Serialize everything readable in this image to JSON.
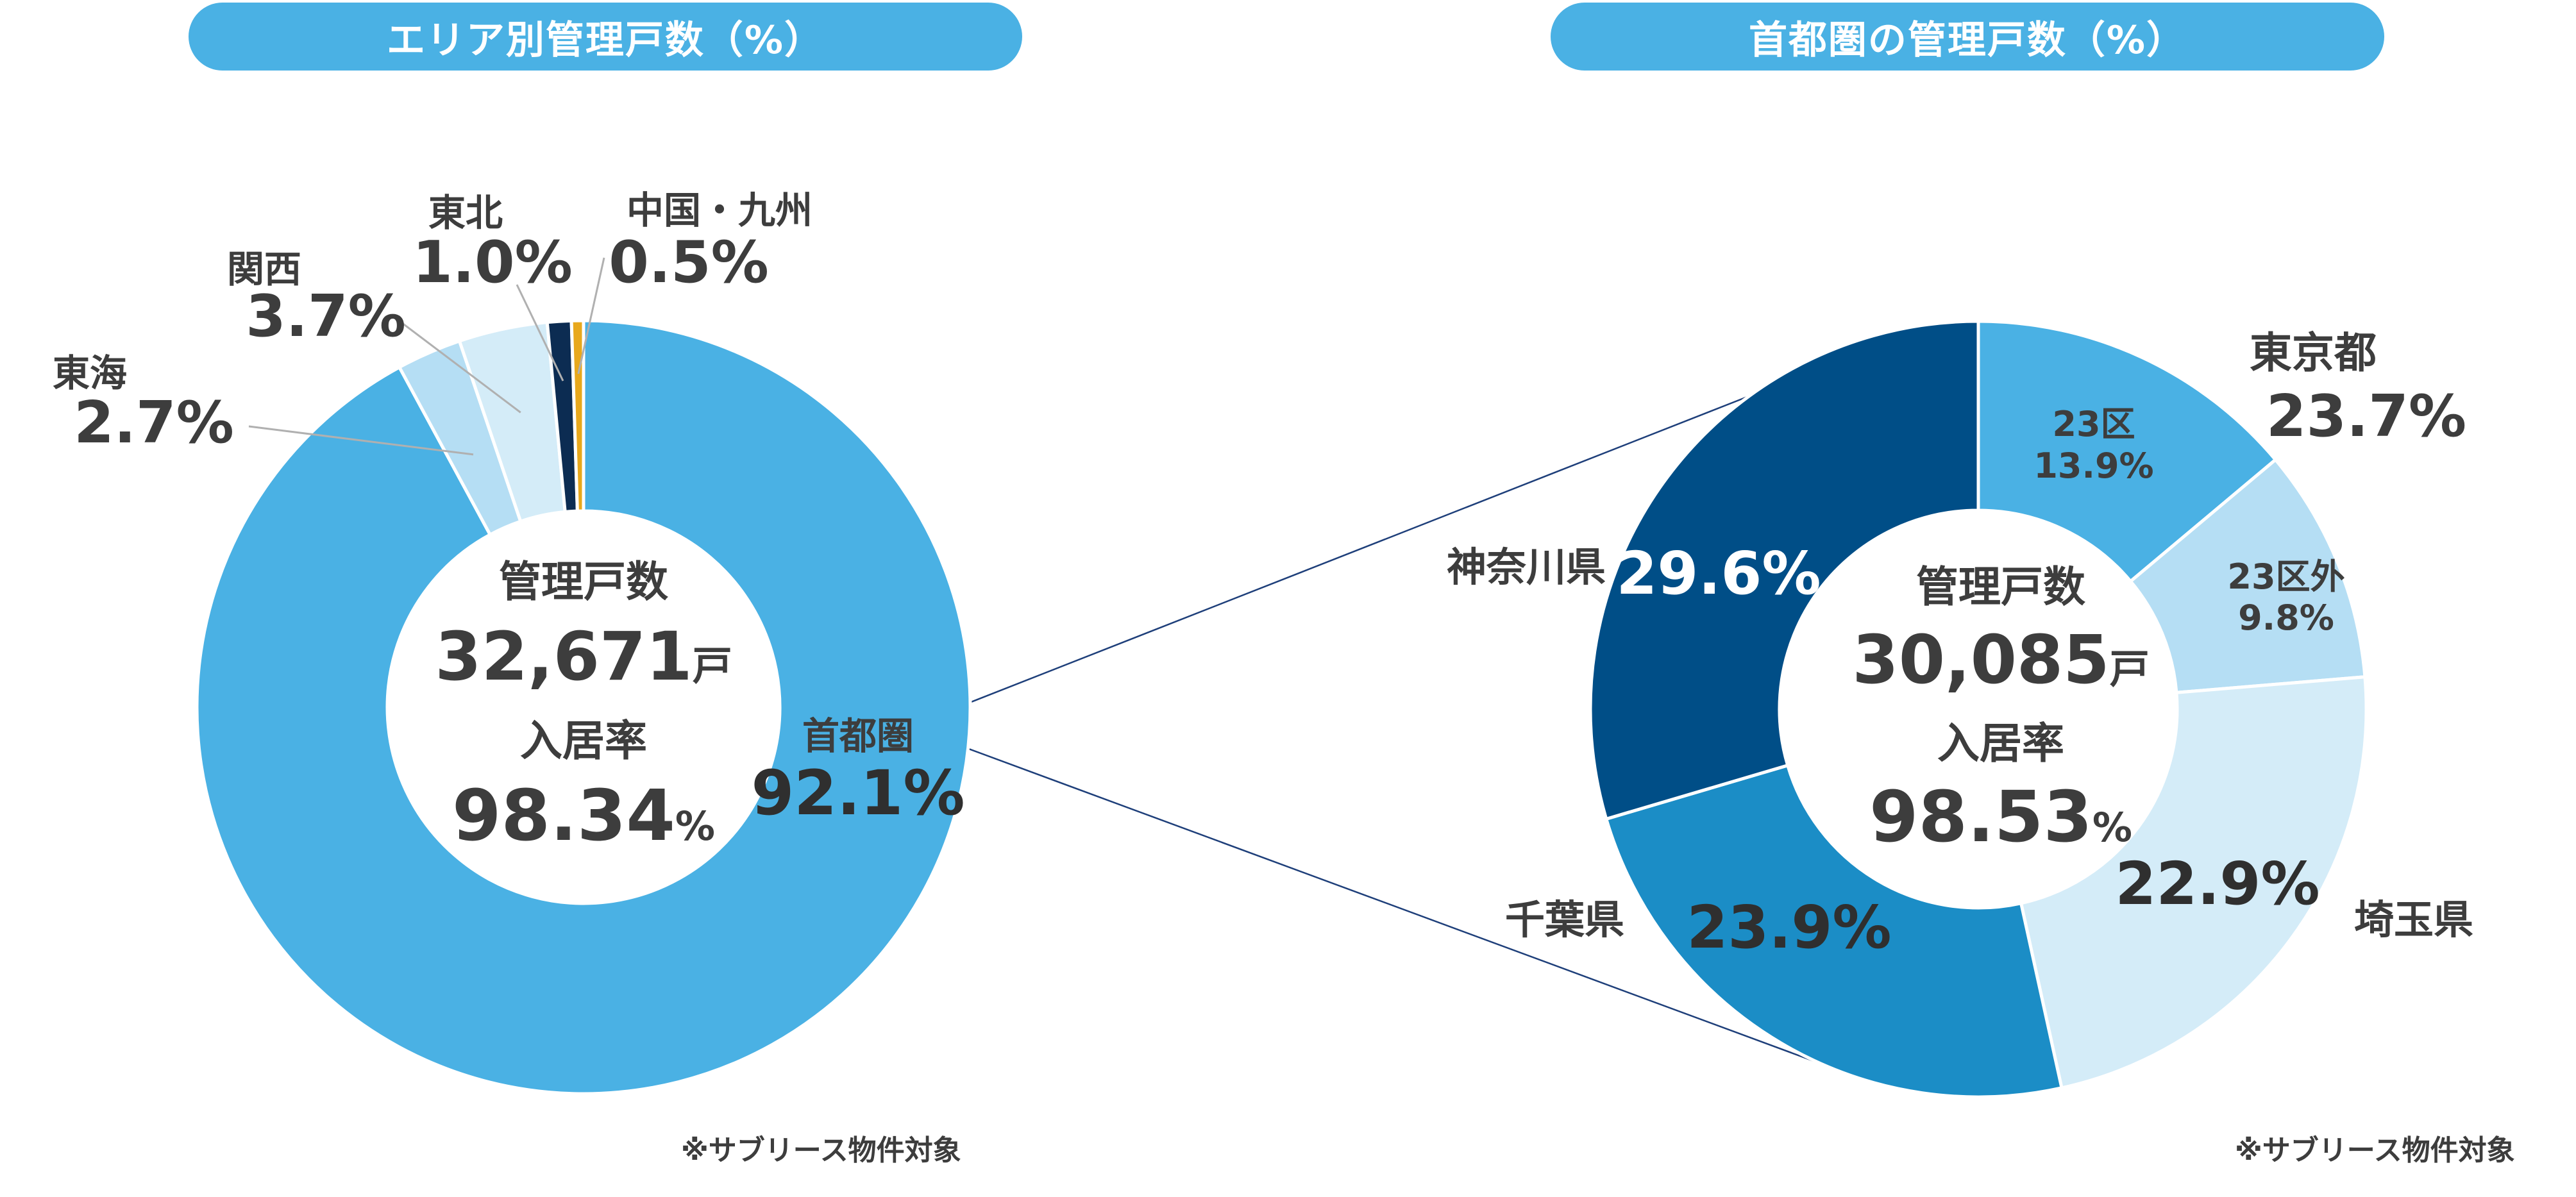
{
  "note": "※サブリース物件対象",
  "chart_data": [
    {
      "type": "pie",
      "title": "エリア別管理戸数（%）",
      "categories": [
        "首都圏",
        "東海",
        "関西",
        "東北",
        "中国・九州"
      ],
      "values": [
        92.1,
        2.7,
        3.7,
        1.0,
        0.5
      ],
      "value_labels": [
        "92.1%",
        "2.7%",
        "3.7%",
        "1.0%",
        "0.5%"
      ],
      "colors": [
        "#4ab1e4",
        "#b5def4",
        "#d4ecf8",
        "#0c2c52",
        "#e8a81c"
      ],
      "center": {
        "label1": "管理戸数",
        "count": "32,671",
        "count_unit": "戸",
        "label2": "入居率",
        "rate": "98.34",
        "rate_unit": "%"
      }
    },
    {
      "type": "pie",
      "title": "首都圏の管理戸数（%）",
      "categories": [
        "23区",
        "23区外",
        "埼玉県",
        "千葉県",
        "神奈川県"
      ],
      "values": [
        13.9,
        9.8,
        22.9,
        23.9,
        29.6
      ],
      "value_labels": [
        "13.9%",
        "9.8%",
        "22.9%",
        "23.9%",
        "29.6%"
      ],
      "colors": [
        "#4ab1e4",
        "#b5def4",
        "#d4ecf8",
        "#1b8dc6",
        "#004e87"
      ],
      "group_label": {
        "name": "東京都",
        "value": "23.7%"
      },
      "center": {
        "label1": "管理戸数",
        "count": "30,085",
        "count_unit": "戸",
        "label2": "入居率",
        "rate": "98.53",
        "rate_unit": "%"
      }
    }
  ]
}
